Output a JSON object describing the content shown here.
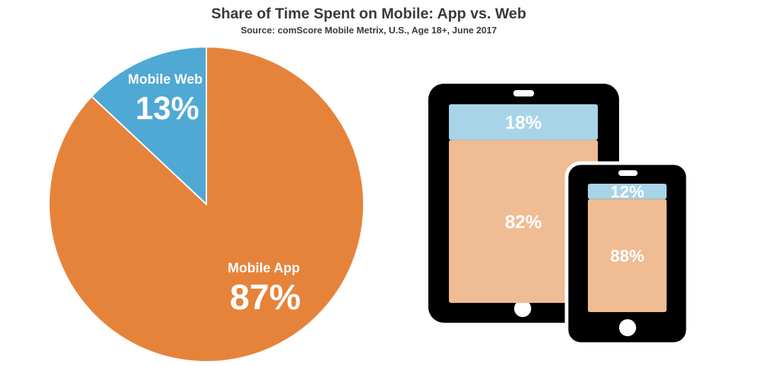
{
  "chart_data": [
    {
      "type": "pie",
      "title": "Share of Time Spent on Mobile: App vs. Web",
      "subtitle": "Source: comScore Mobile Metrix, U.S., Age 18+, June 2017",
      "slices": [
        {
          "label": "Mobile Web",
          "value": 13,
          "display": "13%",
          "color": "#4fa9d4"
        },
        {
          "label": "Mobile App",
          "value": 87,
          "display": "87%",
          "color": "#e6833b"
        }
      ]
    },
    {
      "type": "bar",
      "stacked": true,
      "categories": [
        "Tablet",
        "Smartphone"
      ],
      "series": [
        {
          "values": [
            18,
            12
          ],
          "display": [
            "18%",
            "12%"
          ],
          "color": "#a7d4e7"
        },
        {
          "values": [
            82,
            88
          ],
          "display": [
            "82%",
            "88%"
          ],
          "color": "#f0bc94"
        }
      ]
    }
  ]
}
